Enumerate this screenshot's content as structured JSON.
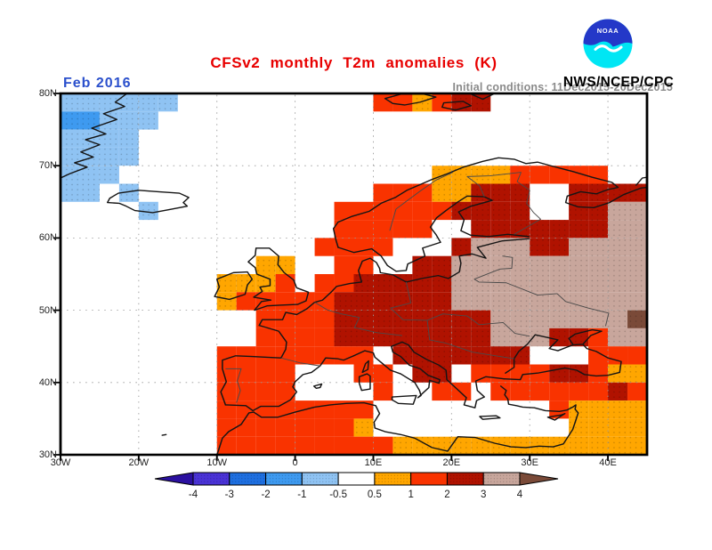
{
  "header": {
    "agency": "NWS/NCEP/CPC",
    "noaa_logo_text": "NOAA",
    "title_color": "#e80000",
    "date_color": "#2b50cc",
    "subtitle_color": "#8a8a8a"
  },
  "chart_data": {
    "type": "heatmap",
    "title": "CFSv2 monthly T2m anomalies (K)",
    "subtitle": "Initial conditions: 11Dec2015-20Dec2015",
    "valid_month": "Feb 2016",
    "units": "K",
    "projection": "latlon",
    "lon_range": [
      -30,
      45
    ],
    "lat_range": [
      30,
      80
    ],
    "grid_deg": 2.5,
    "x_ticks": [
      {
        "label": "30W",
        "lon": -30
      },
      {
        "label": "20W",
        "lon": -20
      },
      {
        "label": "10W",
        "lon": -10
      },
      {
        "label": "0",
        "lon": 0
      },
      {
        "label": "10E",
        "lon": 10
      },
      {
        "label": "20E",
        "lon": 20
      },
      {
        "label": "30E",
        "lon": 30
      },
      {
        "label": "40E",
        "lon": 40
      }
    ],
    "y_ticks": [
      {
        "label": "80N",
        "lat": 80
      },
      {
        "label": "70N",
        "lat": 70
      },
      {
        "label": "60N",
        "lat": 60
      },
      {
        "label": "50N",
        "lat": 50
      },
      {
        "label": "40N",
        "lat": 40
      },
      {
        "label": "30N",
        "lat": 30
      }
    ],
    "x_gridlines": [
      -20,
      -10,
      0,
      10,
      20,
      30,
      40
    ],
    "y_gridlines": [
      40,
      50,
      60,
      70
    ],
    "palette": {
      "l": "#8fc3f3",
      "b": "#3e9af0",
      "o": "#ffa600",
      "r": "#f93300",
      "d": "#b01200",
      "t": "#c8a69c",
      "D": "#7a4a38"
    },
    "code_values_K": {
      ".": "-0.5 to 0.5",
      "l": "-1 to -0.5",
      "b": "-2 to -1",
      "o": "0.5 to 1",
      "r": "1 to 2",
      "d": "2 to 3",
      "t": "3 to 4",
      "D": "above 4"
    },
    "stippled_codes": [
      "l",
      "b",
      "o",
      "d",
      "t",
      "D"
    ],
    "rows": [
      "llllll..........rrordd........",
      "bblll.........................",
      "llll..........................",
      "llll..........................",
      "lll................oooorrrrr..",
      "ll.l............rrrooddd..dddd",
      "....l.........rrrrrrdddd..ddtt",
      "..............rrrrr..dddddddtt",
      ".............rrrr...dtttddtttt",
      "..........oo..rr..ddtttttttttt",
      "........ooor.rrdddddtttttttttt",
      "........orrrrrddddddtttttttttt",
      "..........rrrrddddddddtttttttD",
      "..........rrrrddddddddtttddrtt",
      "........rrrrrrrr.ddddddd...rrr",
      "........rrrr...rr.dd.rrrrddroo",
      "........rrrr....r..rr.rrrrrrdr",
      "........rrrrrrrr.........roooo",
      "........rrrrrrro..........oooo",
      "........rrrrrrrrrooooooooooooo"
    ],
    "colorbar": {
      "labels": [
        "-4",
        "-3",
        "-2",
        "-1",
        "-0.5",
        "0.5",
        "1",
        "2",
        "3",
        "4"
      ],
      "segment_colors": [
        "#4a33d6",
        "#1e6fe0",
        "#3e9af0",
        "#8fc3f3",
        "#ffffff",
        "#ffa600",
        "#f93300",
        "#b01200",
        "#c8a69c"
      ],
      "left_arrow_color": "#2b10a0",
      "right_arrow_color": "#7a4a38",
      "stippled_segments": [
        0,
        1,
        2,
        3,
        5,
        7,
        8
      ]
    }
  }
}
